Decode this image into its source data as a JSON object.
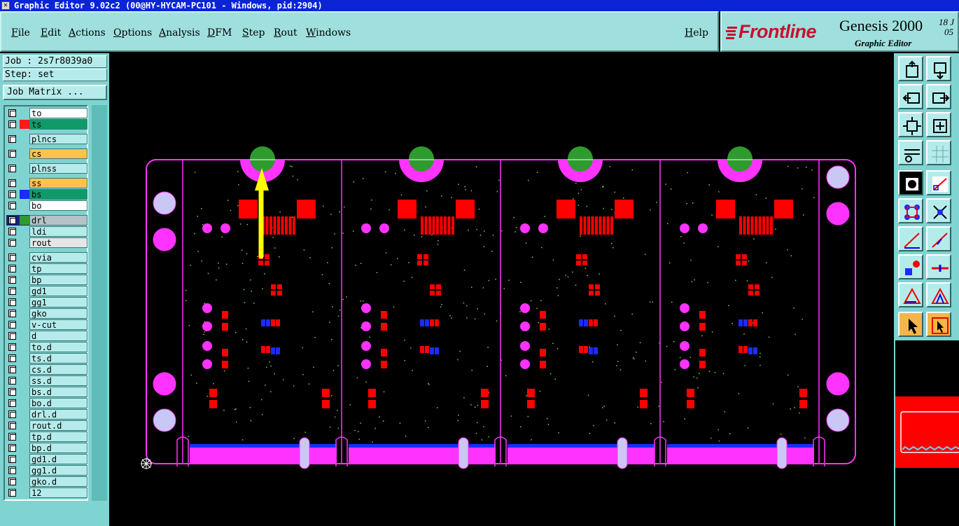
{
  "window": {
    "title": "Graphic Editor 9.02c2 (00@HY-HYCAM-PC101 - Windows, pid:2904)"
  },
  "menu": {
    "items": [
      "File",
      "Edit",
      "Actions",
      "Options",
      "Analysis",
      "DFM",
      "Step",
      "Rout",
      "Windows"
    ],
    "help": "Help"
  },
  "brand": {
    "logo": "Frontline",
    "product": "Genesis 2000",
    "subtitle": "Graphic Editor",
    "date_line1": "18 J",
    "date_line2": "05"
  },
  "job": {
    "job_label": "Job : 2s7r8039a0",
    "step_label": "Step: set",
    "job_matrix_button": "Job Matrix ..."
  },
  "layers": [
    {
      "name": "to",
      "bg": "#ffffff",
      "swatch": ""
    },
    {
      "name": "ts",
      "bg": "#0f9a6a",
      "swatch": "#ff1a1a"
    },
    {
      "name": "plncs",
      "bg": "#b5eceb",
      "swatch": ""
    },
    {
      "name": "cs",
      "bg": "#ffc34d",
      "swatch": ""
    },
    {
      "name": "plnss",
      "bg": "#b5eceb",
      "swatch": ""
    },
    {
      "name": "ss",
      "bg": "#ffc34d",
      "swatch": ""
    },
    {
      "name": "bs",
      "bg": "#0f9a6a",
      "swatch": "#1a2cff"
    },
    {
      "name": "bo",
      "bg": "#ffffff",
      "swatch": ""
    },
    {
      "name": "drl",
      "bg": "#b5c3c8",
      "swatch": "#2e9b2e",
      "active": true
    },
    {
      "name": "ldi",
      "bg": "#b5eceb",
      "swatch": ""
    },
    {
      "name": "rout",
      "bg": "#e6e6e6",
      "swatch": ""
    },
    {
      "name": "cvia",
      "bg": "#b5eceb",
      "swatch": ""
    },
    {
      "name": "tp",
      "bg": "#b5eceb",
      "swatch": ""
    },
    {
      "name": "bp",
      "bg": "#b5eceb",
      "swatch": ""
    },
    {
      "name": "gd1",
      "bg": "#b5eceb",
      "swatch": ""
    },
    {
      "name": "gg1",
      "bg": "#b5eceb",
      "swatch": ""
    },
    {
      "name": "gko",
      "bg": "#b5eceb",
      "swatch": ""
    },
    {
      "name": "v-cut",
      "bg": "#b5eceb",
      "swatch": ""
    },
    {
      "name": "d",
      "bg": "#b5eceb",
      "swatch": ""
    },
    {
      "name": "to.d",
      "bg": "#b5eceb",
      "swatch": ""
    },
    {
      "name": "ts.d",
      "bg": "#b5eceb",
      "swatch": ""
    },
    {
      "name": "cs.d",
      "bg": "#b5eceb",
      "swatch": ""
    },
    {
      "name": "ss.d",
      "bg": "#b5eceb",
      "swatch": ""
    },
    {
      "name": "bs.d",
      "bg": "#b5eceb",
      "swatch": ""
    },
    {
      "name": "bo.d",
      "bg": "#b5eceb",
      "swatch": ""
    },
    {
      "name": "drl.d",
      "bg": "#b5eceb",
      "swatch": ""
    },
    {
      "name": "rout.d",
      "bg": "#b5eceb",
      "swatch": ""
    },
    {
      "name": "tp.d",
      "bg": "#b5eceb",
      "swatch": ""
    },
    {
      "name": "bp.d",
      "bg": "#b5eceb",
      "swatch": ""
    },
    {
      "name": "gd1.d",
      "bg": "#b5eceb",
      "swatch": ""
    },
    {
      "name": "gg1.d",
      "bg": "#b5eceb",
      "swatch": ""
    },
    {
      "name": "gko.d",
      "bg": "#b5eceb",
      "swatch": ""
    },
    {
      "name": "12",
      "bg": "#b5eceb",
      "swatch": ""
    }
  ],
  "colors": {
    "outline": "#ff33ff",
    "pad": "#ff0000",
    "drill": "#2e9b2e",
    "highlight_arrow": "#ffff00",
    "via": "#1a2cff"
  },
  "tools": [
    {
      "icon": "zoom-home-icon"
    },
    {
      "icon": "zoom-fit-icon"
    },
    {
      "icon": "pan-left-icon"
    },
    {
      "icon": "pan-right-icon"
    },
    {
      "icon": "zoom-out-icon"
    },
    {
      "icon": "zoom-in-icon"
    },
    {
      "icon": "snap-settings-icon"
    },
    {
      "icon": "grid-icon"
    },
    {
      "icon": "highlight-icon"
    },
    {
      "icon": "measure-icon"
    },
    {
      "icon": "connect-icon"
    },
    {
      "icon": "cross-select-icon"
    },
    {
      "icon": "line-add-icon"
    },
    {
      "icon": "line-edit-icon"
    },
    {
      "icon": "pad-edit-icon"
    },
    {
      "icon": "split-line-icon"
    },
    {
      "icon": "triangle-edit-icon"
    },
    {
      "icon": "triangle-select-icon"
    },
    {
      "icon": "select-pointer-icon"
    },
    {
      "icon": "select-box-icon"
    }
  ]
}
